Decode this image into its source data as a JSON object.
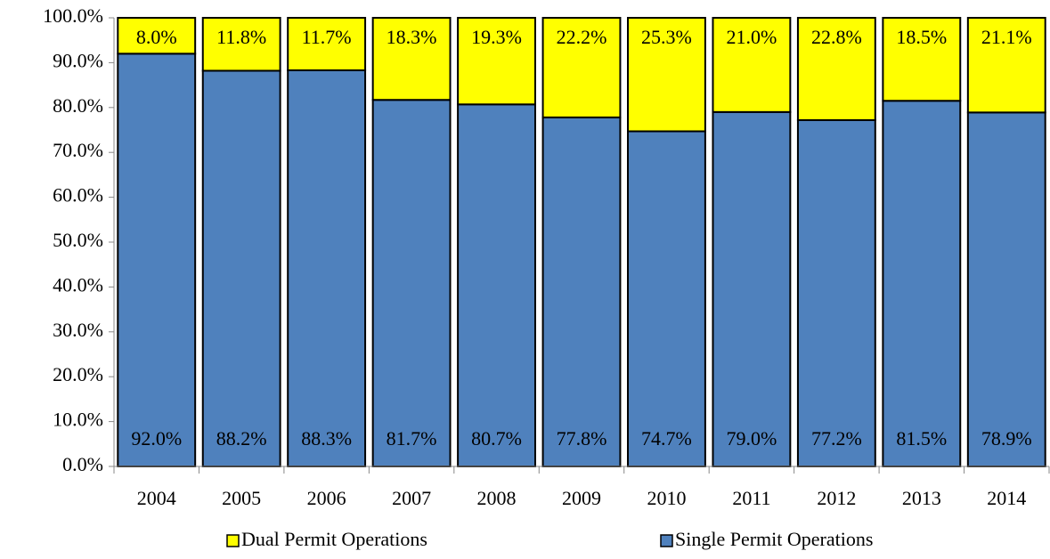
{
  "chart_data": {
    "type": "stacked_bar",
    "categories": [
      "2004",
      "2005",
      "2006",
      "2007",
      "2008",
      "2009",
      "2010",
      "2011",
      "2012",
      "2013",
      "2014"
    ],
    "series": [
      {
        "name": "Single Permit Operations",
        "color": "#4f81bd",
        "values": [
          92.0,
          88.2,
          88.3,
          81.7,
          80.7,
          77.8,
          74.7,
          79.0,
          77.2,
          81.5,
          78.9
        ],
        "value_labels": [
          "92.0%",
          "88.2%",
          "88.3%",
          "81.7%",
          "80.7%",
          "77.8%",
          "74.7%",
          "79.0%",
          "77.2%",
          "81.5%",
          "78.9%"
        ]
      },
      {
        "name": "Dual Permit Operations",
        "color": "#ffff00",
        "values": [
          8.0,
          11.8,
          11.7,
          18.3,
          19.3,
          22.2,
          25.3,
          21.0,
          22.8,
          18.5,
          21.1
        ],
        "value_labels": [
          "8.0%",
          "11.8%",
          "11.7%",
          "18.3%",
          "19.3%",
          "22.2%",
          "25.3%",
          "21.0%",
          "22.8%",
          "18.5%",
          "21.1%"
        ]
      }
    ],
    "ylim": [
      0,
      100
    ],
    "yticks": [
      {
        "value": 0,
        "label": "0.0%"
      },
      {
        "value": 10,
        "label": "10.0%"
      },
      {
        "value": 20,
        "label": "20.0%"
      },
      {
        "value": 30,
        "label": "30.0%"
      },
      {
        "value": 40,
        "label": "40.0%"
      },
      {
        "value": 50,
        "label": "50.0%"
      },
      {
        "value": 60,
        "label": "60.0%"
      },
      {
        "value": 70,
        "label": "70.0%"
      },
      {
        "value": 80,
        "label": "80.0%"
      },
      {
        "value": 90,
        "label": "90.0%"
      },
      {
        "value": 100,
        "label": "100.0%"
      }
    ],
    "legend": "bottom"
  }
}
